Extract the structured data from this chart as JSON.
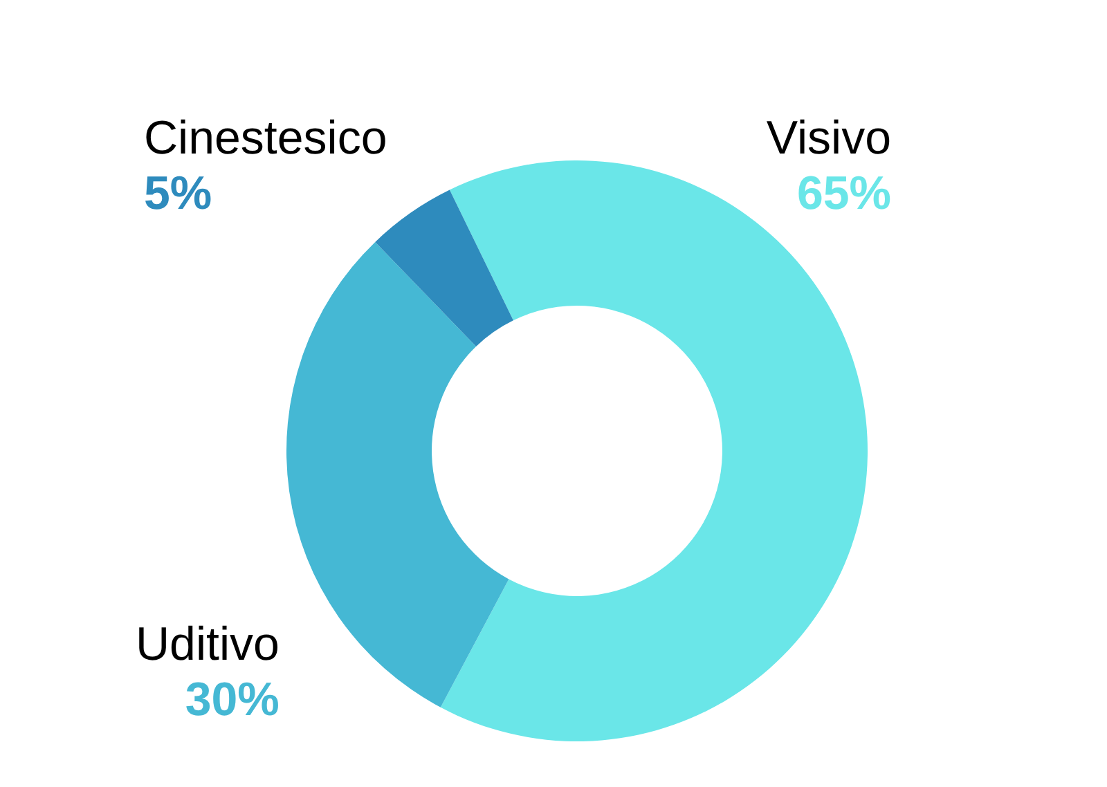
{
  "chart_data": {
    "type": "donut",
    "categories": [
      "Visivo",
      "Uditivo",
      "Cinestesico"
    ],
    "values": [
      65,
      30,
      5
    ],
    "colors": [
      "#6ae6e8",
      "#45b8d4",
      "#2e8bbd"
    ],
    "value_labels": [
      "65%",
      "30%",
      "5%"
    ],
    "legend": false
  }
}
